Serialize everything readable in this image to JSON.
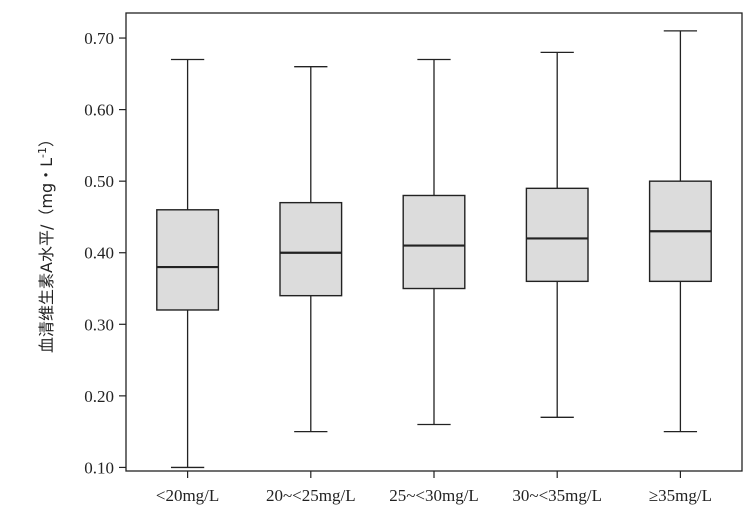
{
  "chart_data": {
    "type": "boxplot",
    "title": "",
    "xlabel": "",
    "ylabel": "血清维生素A水平/（mg・L",
    "ylabel_sup": "-1",
    "ylabel_close": "）",
    "ylim": [
      0.095,
      0.735
    ],
    "yticks": [
      0.1,
      0.2,
      0.3,
      0.4,
      0.5,
      0.6,
      0.7
    ],
    "ytick_labels": [
      "0.10",
      "0.20",
      "0.30",
      "0.40",
      "0.50",
      "0.60",
      "0.70"
    ],
    "grid": false,
    "categories": [
      "<20mg/L",
      "20~<25mg/L",
      "25~<30mg/L",
      "30~<35mg/L",
      "≥35mg/L"
    ],
    "boxes": [
      {
        "whisker_low": 0.1,
        "q1": 0.32,
        "median": 0.38,
        "q3": 0.46,
        "whisker_high": 0.67
      },
      {
        "whisker_low": 0.15,
        "q1": 0.34,
        "median": 0.4,
        "q3": 0.47,
        "whisker_high": 0.66
      },
      {
        "whisker_low": 0.16,
        "q1": 0.35,
        "median": 0.41,
        "q3": 0.48,
        "whisker_high": 0.67
      },
      {
        "whisker_low": 0.17,
        "q1": 0.36,
        "median": 0.42,
        "q3": 0.49,
        "whisker_high": 0.68
      },
      {
        "whisker_low": 0.15,
        "q1": 0.36,
        "median": 0.43,
        "q3": 0.5,
        "whisker_high": 0.71
      }
    ],
    "colors": {
      "box_fill": "#dcdcdc",
      "stroke": "#222222"
    }
  }
}
